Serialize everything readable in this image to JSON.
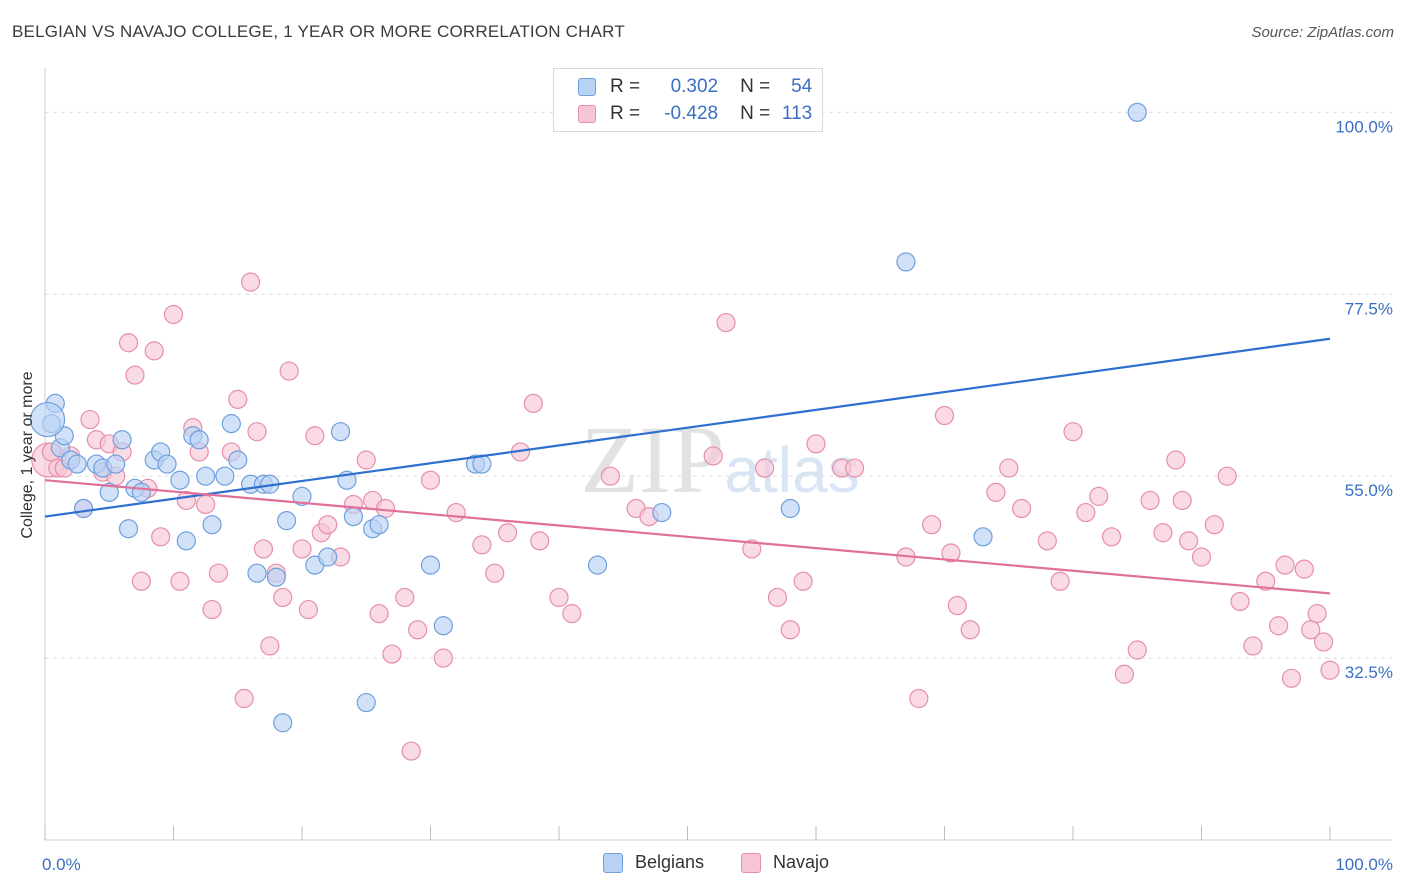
{
  "title": "BELGIAN VS NAVAJO COLLEGE, 1 YEAR OR MORE CORRELATION CHART",
  "source": "Source: ZipAtlas.com",
  "watermark": "ZIPatlas",
  "legend": [
    {
      "r_label": "R =",
      "r_value": "0.302",
      "n_label": "N =",
      "n_value": "54"
    },
    {
      "r_label": "R =",
      "r_value": "-0.428",
      "n_label": "N =",
      "n_value": "113"
    }
  ],
  "bottom_legend": [
    "Belgians",
    "Navajo"
  ],
  "colors": {
    "blue_fill": "#b8d2f4",
    "blue_stroke": "#6f9fdc",
    "blue_line": "#2e6fcf",
    "pink_fill": "#f7c6d6",
    "pink_stroke": "#e58fab",
    "pink_line": "#e0709a",
    "tick_text": "#3a6fc4",
    "grid": "#dddddd"
  },
  "chart_data": {
    "type": "scatter",
    "title": "BELGIAN VS NAVAJO COLLEGE, 1 YEAR OR MORE CORRELATION CHART",
    "xlabel": "",
    "ylabel": "College, 1 year or more",
    "xlim": [
      0,
      100
    ],
    "ylim": [
      10,
      104
    ],
    "x_tick_labels": [
      "0.0%",
      "100.0%"
    ],
    "y_ticks": [
      32.5,
      55.0,
      77.5,
      100.0
    ],
    "y_tick_labels": [
      "32.5%",
      "55.0%",
      "77.5%",
      "100.0%"
    ],
    "series": [
      {
        "name": "Belgians",
        "r": 0.302,
        "n": 54,
        "trend": [
          [
            0,
            50.0
          ],
          [
            100,
            72.0
          ]
        ],
        "points": [
          [
            0.5,
            61.5
          ],
          [
            0.8,
            64
          ],
          [
            1.2,
            58.5
          ],
          [
            1.5,
            60
          ],
          [
            2,
            57
          ],
          [
            2.5,
            56.5
          ],
          [
            3,
            51
          ],
          [
            4,
            56.5
          ],
          [
            4.5,
            56
          ],
          [
            5,
            53
          ],
          [
            5.5,
            56.5
          ],
          [
            6,
            59.5
          ],
          [
            6.5,
            48.5
          ],
          [
            7,
            53.5
          ],
          [
            7.5,
            53
          ],
          [
            8.5,
            57
          ],
          [
            9,
            58
          ],
          [
            9.5,
            56.5
          ],
          [
            10.5,
            54.5
          ],
          [
            11,
            47
          ],
          [
            11.5,
            60
          ],
          [
            12,
            59.5
          ],
          [
            12.5,
            55
          ],
          [
            13,
            49
          ],
          [
            14,
            55
          ],
          [
            14.5,
            61.5
          ],
          [
            15,
            57
          ],
          [
            16,
            54
          ],
          [
            16.5,
            43
          ],
          [
            17,
            54
          ],
          [
            17.5,
            54
          ],
          [
            18,
            42.5
          ],
          [
            18.5,
            24.5
          ],
          [
            18.8,
            49.5
          ],
          [
            20,
            52.5
          ],
          [
            21,
            44
          ],
          [
            22,
            45
          ],
          [
            23,
            60.5
          ],
          [
            23.5,
            54.5
          ],
          [
            24,
            50
          ],
          [
            25,
            27
          ],
          [
            25.5,
            48.5
          ],
          [
            26,
            49
          ],
          [
            30,
            44
          ],
          [
            31,
            36.5
          ],
          [
            33.5,
            56.5
          ],
          [
            34,
            56.5
          ],
          [
            43,
            44
          ],
          [
            48,
            50.5
          ],
          [
            58,
            51
          ],
          [
            67,
            81.5
          ],
          [
            73,
            47.5
          ],
          [
            85,
            100
          ],
          [
            0.2,
            62
          ]
        ],
        "sizes": {
          "53": "large"
        }
      },
      {
        "name": "Navajo",
        "r": -0.428,
        "n": 113,
        "trend": [
          [
            0,
            54.5
          ],
          [
            100,
            40.5
          ]
        ],
        "points": [
          [
            0.3,
            57
          ],
          [
            0.5,
            58
          ],
          [
            1,
            56
          ],
          [
            1.5,
            56
          ],
          [
            2,
            57.5
          ],
          [
            3,
            51
          ],
          [
            3.5,
            62
          ],
          [
            4,
            59.5
          ],
          [
            4.5,
            55.5
          ],
          [
            5,
            59
          ],
          [
            5.5,
            55
          ],
          [
            6,
            58
          ],
          [
            6.5,
            71.5
          ],
          [
            7,
            67.5
          ],
          [
            7.5,
            42
          ],
          [
            8,
            53.5
          ],
          [
            8.5,
            70.5
          ],
          [
            9,
            47.5
          ],
          [
            10,
            75
          ],
          [
            10.5,
            42
          ],
          [
            11,
            52
          ],
          [
            11.5,
            61
          ],
          [
            12,
            58
          ],
          [
            12.5,
            51.5
          ],
          [
            13,
            38.5
          ],
          [
            13.5,
            43
          ],
          [
            14.5,
            58
          ],
          [
            15,
            64.5
          ],
          [
            15.5,
            27.5
          ],
          [
            16,
            79
          ],
          [
            16.5,
            60.5
          ],
          [
            17,
            46
          ],
          [
            17.5,
            34
          ],
          [
            18,
            43
          ],
          [
            18.5,
            40
          ],
          [
            19,
            68
          ],
          [
            20,
            46
          ],
          [
            20.5,
            38.5
          ],
          [
            21,
            60
          ],
          [
            21.5,
            48
          ],
          [
            22,
            49
          ],
          [
            23,
            45
          ],
          [
            24,
            51.5
          ],
          [
            25,
            57
          ],
          [
            25.5,
            52
          ],
          [
            26,
            38
          ],
          [
            26.5,
            51
          ],
          [
            27,
            33
          ],
          [
            28,
            40
          ],
          [
            28.5,
            21
          ],
          [
            29,
            36
          ],
          [
            30,
            54.5
          ],
          [
            31,
            32.5
          ],
          [
            32,
            50.5
          ],
          [
            34,
            46.5
          ],
          [
            35,
            43
          ],
          [
            36,
            48
          ],
          [
            37,
            58
          ],
          [
            38,
            64
          ],
          [
            38.5,
            47
          ],
          [
            40,
            40
          ],
          [
            41,
            38
          ],
          [
            44,
            55
          ],
          [
            46,
            51
          ],
          [
            47,
            50
          ],
          [
            52,
            57.5
          ],
          [
            53,
            74
          ],
          [
            55,
            46
          ],
          [
            56,
            56
          ],
          [
            57,
            40
          ],
          [
            58,
            36
          ],
          [
            59,
            42
          ],
          [
            60,
            59
          ],
          [
            62,
            56
          ],
          [
            63,
            56
          ],
          [
            67,
            45
          ],
          [
            68,
            27.5
          ],
          [
            69,
            49
          ],
          [
            70,
            62.5
          ],
          [
            70.5,
            45.5
          ],
          [
            71,
            39
          ],
          [
            72,
            36
          ],
          [
            74,
            53
          ],
          [
            75,
            56
          ],
          [
            76,
            51
          ],
          [
            78,
            47
          ],
          [
            79,
            42
          ],
          [
            80,
            60.5
          ],
          [
            81,
            50.5
          ],
          [
            82,
            52.5
          ],
          [
            83,
            47.5
          ],
          [
            84,
            30.5
          ],
          [
            85,
            33.5
          ],
          [
            86,
            52
          ],
          [
            87,
            48
          ],
          [
            88,
            57
          ],
          [
            88.5,
            52
          ],
          [
            89,
            47
          ],
          [
            90,
            45
          ],
          [
            91,
            49
          ],
          [
            92,
            55
          ],
          [
            93,
            39.5
          ],
          [
            94,
            34
          ],
          [
            95,
            42
          ],
          [
            96,
            36.5
          ],
          [
            96.5,
            44
          ],
          [
            97,
            30
          ],
          [
            98,
            43.5
          ],
          [
            98.5,
            36
          ],
          [
            99,
            38
          ],
          [
            99.5,
            34.5
          ],
          [
            100,
            31
          ]
        ],
        "sizes": {
          "0": "large"
        }
      }
    ]
  }
}
